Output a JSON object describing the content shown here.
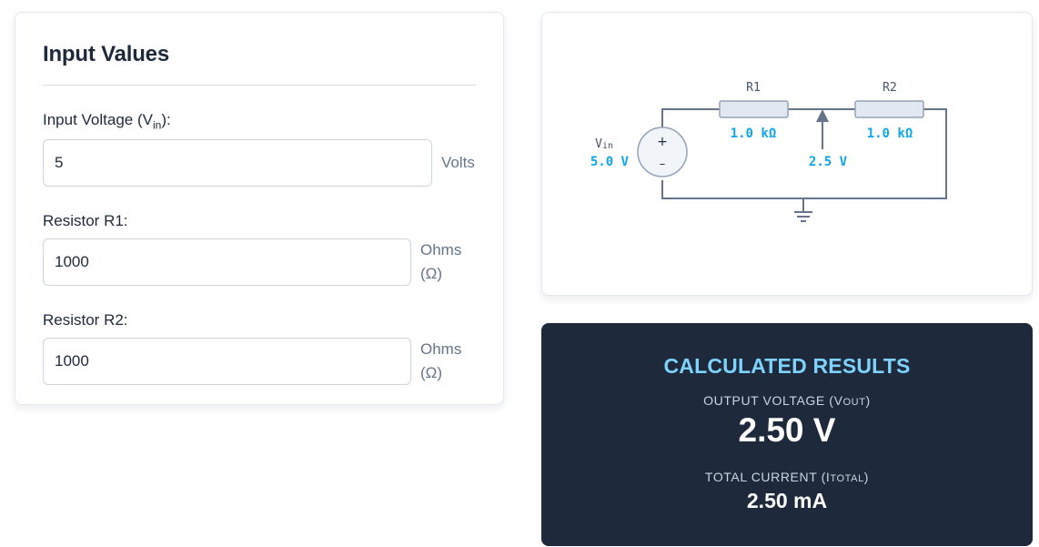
{
  "input_panel": {
    "title": "Input Values",
    "vin": {
      "label_prefix": "Input Voltage (V",
      "label_sub": "in",
      "label_suffix": "):",
      "value": "5",
      "unit": "Volts"
    },
    "r1": {
      "label": "Resistor R1:",
      "value": "1000",
      "unit": "Ohms (Ω)"
    },
    "r2": {
      "label": "Resistor R2:",
      "value": "1000",
      "unit": "Ohms (Ω)"
    }
  },
  "circuit": {
    "r1_name": "R1",
    "r2_name": "R2",
    "r1_value": "1.0 kΩ",
    "r2_value": "1.0 kΩ",
    "source_name_prefix": "V",
    "source_name_sub": "in",
    "source_value": "5.0 V",
    "plus": "+",
    "minus": "–",
    "output_value": "2.5 V"
  },
  "results": {
    "title": "CALCULATED RESULTS",
    "vout_label_prefix": "OUTPUT VOLTAGE (V",
    "vout_label_sub": "OUT",
    "vout_label_suffix": ")",
    "vout_value": "2.50 V",
    "itotal_label_prefix": "TOTAL CURRENT (I",
    "itotal_label_sub": "TOTAL",
    "itotal_label_suffix": ")",
    "itotal_value": "2.50 mA"
  },
  "colors": {
    "accent": "#7dd3fc",
    "value_text": "#0ea5e9",
    "wire": "#64748b",
    "resistor_fill": "#e2e8f0",
    "results_bg": "#1e293b"
  }
}
